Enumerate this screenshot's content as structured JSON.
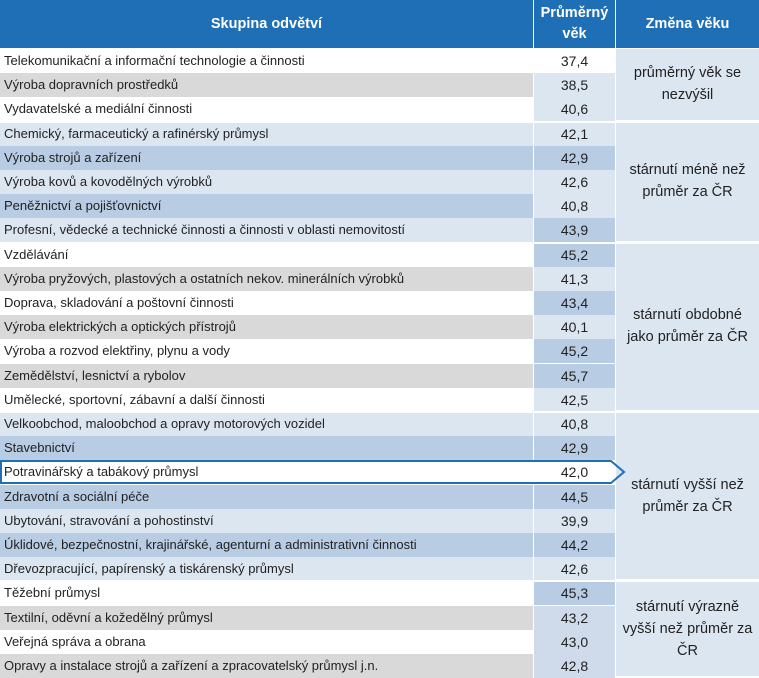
{
  "header": {
    "col_name": "Skupina odvětví",
    "col_value_line1": "Průměrný",
    "col_value_line2": "věk",
    "col_change": "Změna věku"
  },
  "colors": {
    "header": "#1f6fb6",
    "group_cell": "#dce6f1",
    "arrow": "#1f6fb6",
    "shade_light": "#dce6f1",
    "shade_medium": "#b8cce4",
    "shade_grey": "#d9d9d9",
    "shade_mid": "#cfdbea"
  },
  "rows": [
    {
      "name": "Telekomunikační a informační technologie a činnosti",
      "value": "37,4",
      "shade": "white",
      "vshade": "white"
    },
    {
      "name": "Výroba dopravních prostředků",
      "value": "38,5",
      "shade": "grey",
      "vshade": "light"
    },
    {
      "name": "Vydavatelské a mediální činnosti",
      "value": "40,6",
      "shade": "white",
      "vshade": "light"
    },
    {
      "name": "Chemický, farmaceutický a rafinérský průmysl",
      "value": "42,1",
      "shade": "light",
      "vshade": "light"
    },
    {
      "name": "Výroba strojů a zařízení",
      "value": "42,9",
      "shade": "medium",
      "vshade": "medium"
    },
    {
      "name": "Výroba kovů a kovodělných výrobků",
      "value": "42,6",
      "shade": "light",
      "vshade": "light"
    },
    {
      "name": "Peněžnictví a pojišťovnictví",
      "value": "40,8",
      "shade": "medium",
      "vshade": "light"
    },
    {
      "name": "Profesní, vědecké a technické činnosti a činnosti v oblasti nemovitostí",
      "value": "43,9",
      "shade": "light",
      "vshade": "medium"
    },
    {
      "name": "Vzdělávání",
      "value": "45,2",
      "shade": "white",
      "vshade": "medium"
    },
    {
      "name": "Výroba pryžových, plastových a ostatních nekov. minerálních výrobků",
      "value": "41,3",
      "shade": "grey",
      "vshade": "light"
    },
    {
      "name": "Doprava, skladování a poštovní činnosti",
      "value": "43,4",
      "shade": "white",
      "vshade": "medium"
    },
    {
      "name": "Výroba elektrických a optických přístrojů",
      "value": "40,1",
      "shade": "grey",
      "vshade": "light"
    },
    {
      "name": "Výroba a rozvod elektřiny, plynu a vody",
      "value": "45,2",
      "shade": "white",
      "vshade": "medium"
    },
    {
      "name": "Zemědělství, lesnictví a rybolov",
      "value": "45,7",
      "shade": "grey",
      "vshade": "medium"
    },
    {
      "name": "Umělecké, sportovní, zábavní a další činnosti",
      "value": "42,5",
      "shade": "white",
      "vshade": "light"
    },
    {
      "name": "Velkoobchod, maloobchod a opravy motorových vozidel",
      "value": "40,8",
      "shade": "light",
      "vshade": "light"
    },
    {
      "name": "Stavebnictví",
      "value": "42,9",
      "shade": "medium",
      "vshade": "medium"
    },
    {
      "name": "Potravinářský a tabákový průmysl",
      "value": "42,0",
      "shade": "white",
      "vshade": "white"
    },
    {
      "name": "Zdravotní a sociální péče",
      "value": "44,5",
      "shade": "medium",
      "vshade": "medium"
    },
    {
      "name": "Ubytování, stravování a pohostinství",
      "value": "39,9",
      "shade": "light",
      "vshade": "light"
    },
    {
      "name": "Úklidové, bezpečnostní, krajinářské, agenturní a administrativní činnosti",
      "value": "44,2",
      "shade": "medium",
      "vshade": "medium"
    },
    {
      "name": "Dřevozpracující, papírenský a tiskárenský průmysl",
      "value": "42,6",
      "shade": "light",
      "vshade": "light"
    },
    {
      "name": "Těžební průmysl",
      "value": "45,3",
      "shade": "white",
      "vshade": "medium"
    },
    {
      "name": "Textilní, oděvní a kožedělný průmysl",
      "value": "43,2",
      "shade": "grey",
      "vshade": "mid"
    },
    {
      "name": "Veřejná správa a obrana",
      "value": "43,0",
      "shade": "white",
      "vshade": "mid"
    },
    {
      "name": "Opravy a instalace strojů a zařízení a zpracovatelský průmysl j.n.",
      "value": "42,8",
      "shade": "grey",
      "vshade": "mid"
    }
  ],
  "highlighted_row": 17,
  "groups": [
    {
      "label": "průměrný věk se nezvýšil",
      "first_row": 0,
      "row_count": 3
    },
    {
      "label": "stárnutí méně než průměr za ČR",
      "first_row": 3,
      "row_count": 5
    },
    {
      "label": "stárnutí obdobné jako průměr za ČR",
      "first_row": 8,
      "row_count": 7
    },
    {
      "label": "stárnutí vyšší než průměr za ČR",
      "first_row": 15,
      "row_count": 7
    },
    {
      "label": "stárnutí výrazně vyšší než průměr za ČR",
      "first_row": 22,
      "row_count": 4
    }
  ],
  "chart_data": {
    "type": "table",
    "columns": [
      "Skupina odvětví",
      "Průměrný věk",
      "Změna věku"
    ],
    "categories": [
      "Telekomunikační a informační technologie a činnosti",
      "Výroba dopravních prostředků",
      "Vydavatelské a mediální činnosti",
      "Chemický, farmaceutický a rafinérský průmysl",
      "Výroba strojů a zařízení",
      "Výroba kovů a kovodělných výrobků",
      "Peněžnictví a pojišťovnictví",
      "Profesní, vědecké a technické činnosti a činnosti v oblasti nemovitostí",
      "Vzdělávání",
      "Výroba pryžových, plastových a ostatních nekov. minerálních výrobků",
      "Doprava, skladování a poštovní činnosti",
      "Výroba elektrických a optických přístrojů",
      "Výroba a rozvod elektřiny, plynu a vody",
      "Zemědělství, lesnictví a rybolov",
      "Umělecké, sportovní, zábavní a další činnosti",
      "Velkoobchod, maloobchod a opravy motorových vozidel",
      "Stavebnictví",
      "Potravinářský a tabákový průmysl",
      "Zdravotní a sociální péče",
      "Ubytování, stravování a pohostinství",
      "Úklidové, bezpečnostní, krajinářské, agenturní a administrativní činnosti",
      "Dřevozpracující, papírenský a tiskárenský průmysl",
      "Těžební průmysl",
      "Textilní, oděvní a kožedělný průmysl",
      "Veřejná správa a obrana",
      "Opravy a instalace strojů a zařízení a zpracovatelský průmysl j.n."
    ],
    "values": [
      37.4,
      38.5,
      40.6,
      42.1,
      42.9,
      42.6,
      40.8,
      43.9,
      45.2,
      41.3,
      43.4,
      40.1,
      45.2,
      45.7,
      42.5,
      40.8,
      42.9,
      42.0,
      44.5,
      39.9,
      44.2,
      42.6,
      45.3,
      43.2,
      43.0,
      42.8
    ]
  }
}
